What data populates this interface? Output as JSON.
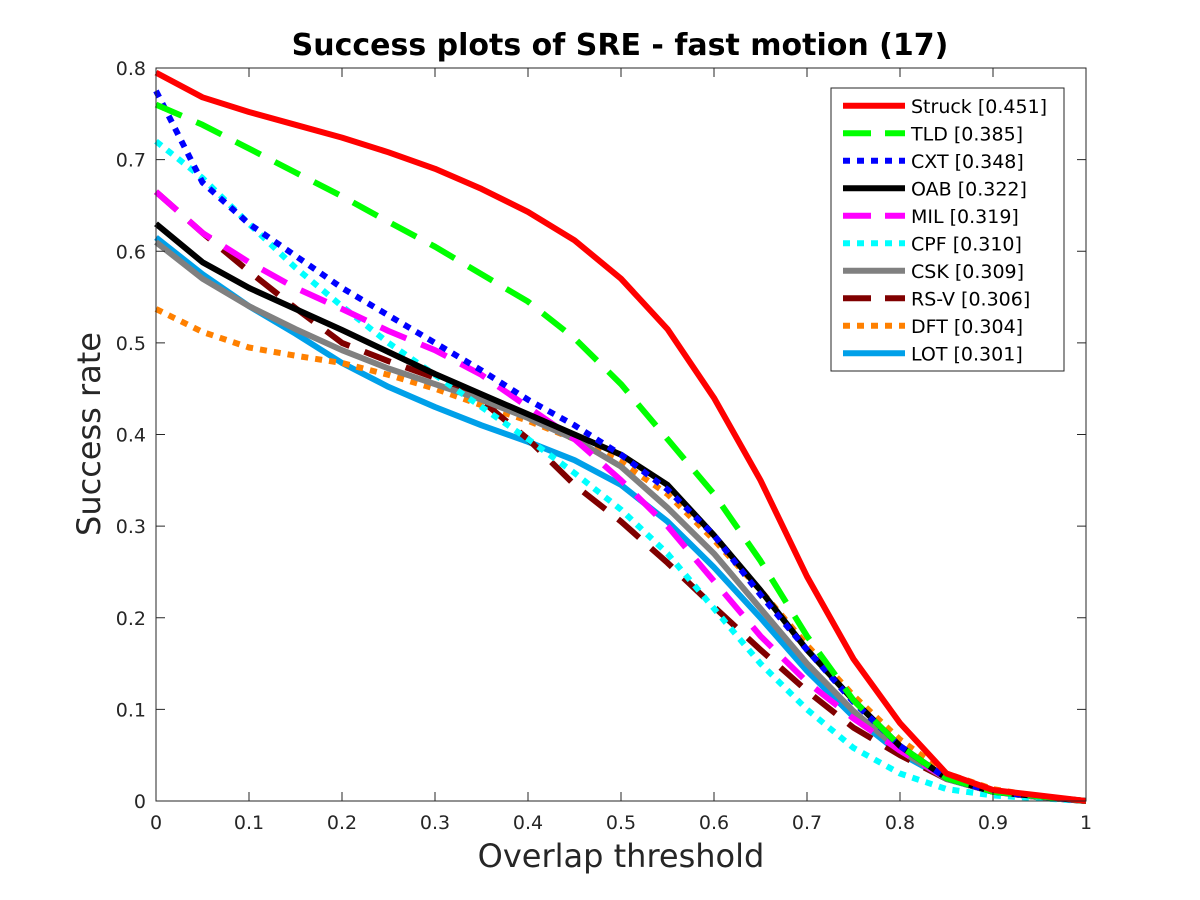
{
  "chart_data": {
    "type": "line",
    "title": "Success plots of SRE - fast motion (17)",
    "xlabel": "Overlap threshold",
    "ylabel": "Success rate",
    "xlim": [
      0,
      1
    ],
    "ylim": [
      0,
      0.8
    ],
    "xticks": [
      "0",
      "0.1",
      "0.2",
      "0.3",
      "0.4",
      "0.5",
      "0.6",
      "0.7",
      "0.8",
      "0.9",
      "1"
    ],
    "yticks": [
      "0",
      "0.1",
      "0.2",
      "0.3",
      "0.4",
      "0.5",
      "0.6",
      "0.7",
      "0.8"
    ],
    "legend_position": "top-right",
    "grid": false,
    "x": [
      0,
      0.05,
      0.1,
      0.15,
      0.2,
      0.25,
      0.3,
      0.35,
      0.4,
      0.45,
      0.5,
      0.55,
      0.6,
      0.65,
      0.7,
      0.75,
      0.8,
      0.85,
      0.9,
      0.95,
      1
    ],
    "series": [
      {
        "name": "Struck [0.451]",
        "color": "#ff0000",
        "dash": "solid",
        "values": [
          0.795,
          0.768,
          0.752,
          0.738,
          0.724,
          0.708,
          0.69,
          0.668,
          0.643,
          0.612,
          0.57,
          0.515,
          0.44,
          0.35,
          0.245,
          0.155,
          0.085,
          0.03,
          0.012,
          0.006,
          0.0
        ]
      },
      {
        "name": "TLD [0.385]",
        "color": "#00ff00",
        "dash": "dashed",
        "values": [
          0.76,
          0.738,
          0.712,
          0.686,
          0.66,
          0.632,
          0.605,
          0.575,
          0.545,
          0.505,
          0.455,
          0.395,
          0.335,
          0.262,
          0.18,
          0.11,
          0.06,
          0.025,
          0.01,
          0.005,
          0.0
        ]
      },
      {
        "name": "CXT [0.348]",
        "color": "#0000ff",
        "dash": "dotted",
        "values": [
          0.775,
          0.675,
          0.63,
          0.595,
          0.56,
          0.53,
          0.5,
          0.47,
          0.438,
          0.41,
          0.378,
          0.34,
          0.29,
          0.225,
          0.165,
          0.108,
          0.06,
          0.025,
          0.01,
          0.005,
          0.0
        ]
      },
      {
        "name": "OAB [0.322]",
        "color": "#000000",
        "dash": "solid",
        "values": [
          0.63,
          0.588,
          0.56,
          0.537,
          0.514,
          0.49,
          0.466,
          0.444,
          0.422,
          0.4,
          0.378,
          0.345,
          0.29,
          0.23,
          0.165,
          0.11,
          0.06,
          0.025,
          0.01,
          0.005,
          0.0
        ]
      },
      {
        "name": "MIL [0.319]",
        "color": "#ff00ff",
        "dash": "dashed",
        "values": [
          0.665,
          0.62,
          0.588,
          0.56,
          0.537,
          0.513,
          0.492,
          0.465,
          0.43,
          0.395,
          0.35,
          0.3,
          0.24,
          0.18,
          0.13,
          0.09,
          0.055,
          0.025,
          0.01,
          0.005,
          0.0
        ]
      },
      {
        "name": "CPF [0.310]",
        "color": "#00ffff",
        "dash": "dotted",
        "values": [
          0.72,
          0.68,
          0.63,
          0.582,
          0.54,
          0.5,
          0.465,
          0.43,
          0.395,
          0.358,
          0.318,
          0.27,
          0.21,
          0.15,
          0.1,
          0.058,
          0.03,
          0.013,
          0.006,
          0.003,
          0.0
        ]
      },
      {
        "name": "CSK [0.309]",
        "color": "#808080",
        "dash": "solid",
        "values": [
          0.61,
          0.57,
          0.54,
          0.515,
          0.492,
          0.472,
          0.455,
          0.438,
          0.418,
          0.395,
          0.365,
          0.32,
          0.27,
          0.21,
          0.15,
          0.098,
          0.055,
          0.024,
          0.01,
          0.004,
          0.0
        ]
      },
      {
        "name": "RS-V [0.306]",
        "color": "#800000",
        "dash": "dashed",
        "values": [
          0.665,
          0.62,
          0.578,
          0.538,
          0.5,
          0.48,
          0.462,
          0.437,
          0.395,
          0.345,
          0.305,
          0.26,
          0.212,
          0.165,
          0.12,
          0.08,
          0.05,
          0.024,
          0.01,
          0.004,
          0.0
        ]
      },
      {
        "name": "DFT [0.304]",
        "color": "#ff8000",
        "dash": "dotted",
        "values": [
          0.537,
          0.512,
          0.495,
          0.486,
          0.478,
          0.465,
          0.45,
          0.432,
          0.415,
          0.395,
          0.37,
          0.335,
          0.285,
          0.23,
          0.17,
          0.115,
          0.067,
          0.03,
          0.013,
          0.005,
          0.0
        ]
      },
      {
        "name": "LOT [0.301]",
        "color": "#00a0e9",
        "dash": "solid",
        "values": [
          0.615,
          0.575,
          0.54,
          0.51,
          0.478,
          0.452,
          0.43,
          0.41,
          0.392,
          0.372,
          0.345,
          0.305,
          0.255,
          0.2,
          0.142,
          0.092,
          0.052,
          0.024,
          0.01,
          0.004,
          0.0
        ]
      }
    ]
  }
}
